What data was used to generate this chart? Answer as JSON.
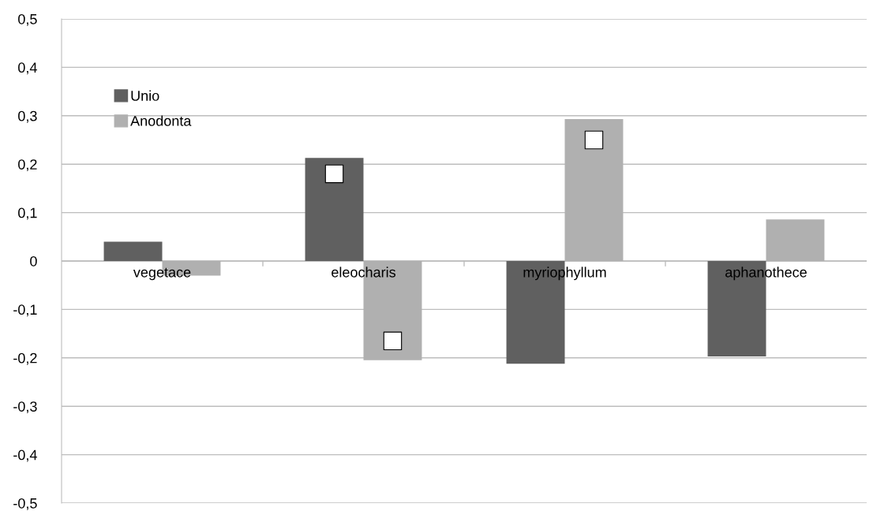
{
  "chart_data": {
    "type": "bar",
    "categories": [
      "vegetace",
      "eleocharis",
      "myriophyllum",
      "aphanothece"
    ],
    "series": [
      {
        "name": "Unio",
        "color": "#606060",
        "values": [
          0.04,
          0.213,
          -0.212,
          -0.197
        ]
      },
      {
        "name": "Anodonta",
        "color": "#b0b0b0",
        "values": [
          -0.03,
          -0.205,
          0.293,
          0.086
        ]
      },
      {
        "type": "scatter",
        "color": "#ffffff",
        "values": [
          null,
          0.18,
          null,
          null
        ]
      },
      {
        "type": "scatter",
        "color": "#ffffff",
        "values": [
          null,
          -0.165,
          0.25,
          null
        ]
      }
    ],
    "ylim": [
      -0.5,
      0.5
    ],
    "yticks": [
      {
        "value": -0.5,
        "label": "-0,5"
      },
      {
        "value": -0.4,
        "label": "-0,4"
      },
      {
        "value": -0.3,
        "label": "-0,3"
      },
      {
        "value": -0.2,
        "label": "-0,2"
      },
      {
        "value": -0.1,
        "label": "-0,1"
      },
      {
        "value": 0,
        "label": "0"
      },
      {
        "value": 0.1,
        "label": "0,1"
      },
      {
        "value": 0.2,
        "label": "0,2"
      },
      {
        "value": 0.3,
        "label": "0,3"
      },
      {
        "value": 0.4,
        "label": "0,4"
      },
      {
        "value": 0.5,
        "label": "0,5"
      }
    ],
    "grid": "y",
    "legend": "top left",
    "marker": "square"
  }
}
